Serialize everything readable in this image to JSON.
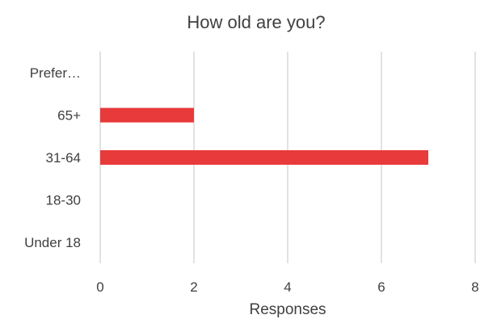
{
  "chart_data": {
    "type": "bar",
    "orientation": "horizontal",
    "title": "How old are you?",
    "xlabel": "Responses",
    "ylabel": "",
    "categories": [
      "Under 18",
      "18-30",
      "31-64",
      "65+",
      "Prefer…"
    ],
    "values": [
      0,
      0,
      7,
      2,
      0
    ],
    "xlim": [
      0,
      8
    ],
    "xticks": [
      "0",
      "2",
      "4",
      "6",
      "8"
    ],
    "grid": true,
    "legend": "none",
    "bar_color": "#e83a3a"
  }
}
